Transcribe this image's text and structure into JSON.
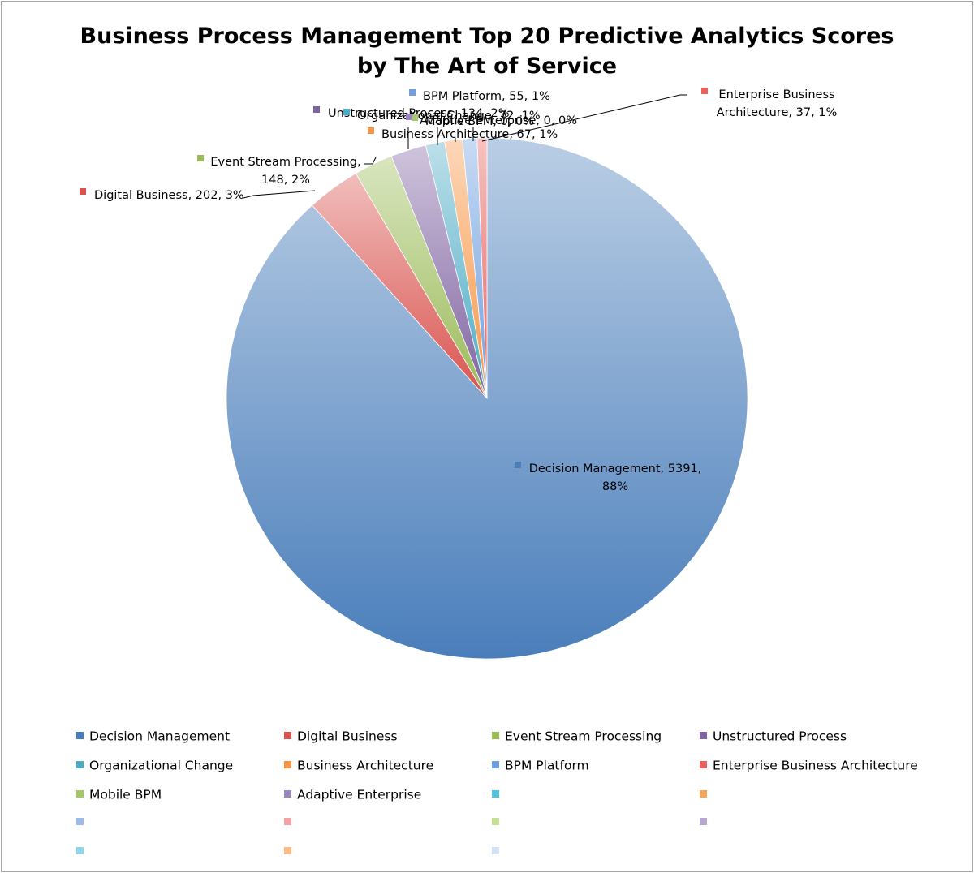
{
  "chart_data": {
    "type": "pie",
    "title": "Business Process Management Top 20 Predictive Analytics Scores",
    "subtitle": "by The Art of Service",
    "label_separator": ", ",
    "slices": [
      {
        "name": "Decision Management",
        "value": 5391,
        "percent_label": "88%",
        "color": "#4a7ebb"
      },
      {
        "name": "Digital Business",
        "value": 202,
        "percent_label": "3%",
        "color": "#d9534f"
      },
      {
        "name": "Event Stream Processing",
        "value": 148,
        "percent_label": "2%",
        "color": "#9bbb59"
      },
      {
        "name": "Unstructured Process",
        "value": 134,
        "percent_label": "2%",
        "color": "#8064a2"
      },
      {
        "name": "Organizational Change",
        "value": 72,
        "percent_label": "1%",
        "color": "#4bacc6"
      },
      {
        "name": "Business Architecture",
        "value": 67,
        "percent_label": "1%",
        "color": "#f79646"
      },
      {
        "name": "BPM Platform",
        "value": 55,
        "percent_label": "1%",
        "color": "#6f9fdf"
      },
      {
        "name": "Enterprise Business Architecture",
        "value": 37,
        "percent_label": "1%",
        "color": "#e8615d"
      },
      {
        "name": "Mobile BPM",
        "value": 0,
        "percent_label": "0%",
        "color": "#a5c867"
      },
      {
        "name": "Adaptive Enterprise",
        "value": 0,
        "percent_label": "0%",
        "color": "#9c85c0"
      }
    ],
    "label_texts": {
      "decision_management": [
        "Decision Management, 5391,",
        "88%"
      ],
      "digital_business": [
        "Digital Business, 202, 3%"
      ],
      "event_stream_processing": [
        "Event Stream Processing,",
        "148, 2%"
      ],
      "unstructured_process": [
        "Unstructured Process, 134, 2%"
      ],
      "organizational_change": [
        "Organizational Change, 72, 1%"
      ],
      "business_architecture": [
        "Business Architecture, 67, 1%"
      ],
      "bpm_platform": [
        "BPM Platform, 55, 1%"
      ],
      "enterprise_business_architecture": [
        "Enterprise Business",
        "Architecture, 37, 1%"
      ],
      "mobile_bpm": [
        "Mobile BPM, 0, 0%"
      ],
      "adaptive_enterprise": [
        "Adaptive Enterprise, 0, 0%"
      ]
    },
    "legend": {
      "position": "bottom",
      "entries": [
        {
          "label": "Decision Management",
          "color": "#4a7ebb"
        },
        {
          "label": "Digital Business",
          "color": "#d9534f"
        },
        {
          "label": "Event Stream Processing",
          "color": "#9bbb59"
        },
        {
          "label": "Unstructured Process",
          "color": "#8064a2"
        },
        {
          "label": "Organizational Change",
          "color": "#4bacc6"
        },
        {
          "label": "Business Architecture",
          "color": "#f79646"
        },
        {
          "label": "BPM Platform",
          "color": "#6f9fdf"
        },
        {
          "label": "Enterprise Business Architecture",
          "color": "#e8615d"
        },
        {
          "label": "Mobile BPM",
          "color": "#a5c867"
        },
        {
          "label": "Adaptive Enterprise",
          "color": "#9c85c0"
        },
        {
          "label": "",
          "color": "#4fc3dc"
        },
        {
          "label": "",
          "color": "#f9a459"
        },
        {
          "label": "",
          "color": "#9dbbea"
        },
        {
          "label": "",
          "color": "#f0a3a1"
        },
        {
          "label": "",
          "color": "#c6df96"
        },
        {
          "label": "",
          "color": "#b7a6cf"
        },
        {
          "label": "",
          "color": "#8fd8ec"
        },
        {
          "label": "",
          "color": "#fbbd85"
        },
        {
          "label": "",
          "color": "#d3e0f3"
        }
      ]
    }
  }
}
